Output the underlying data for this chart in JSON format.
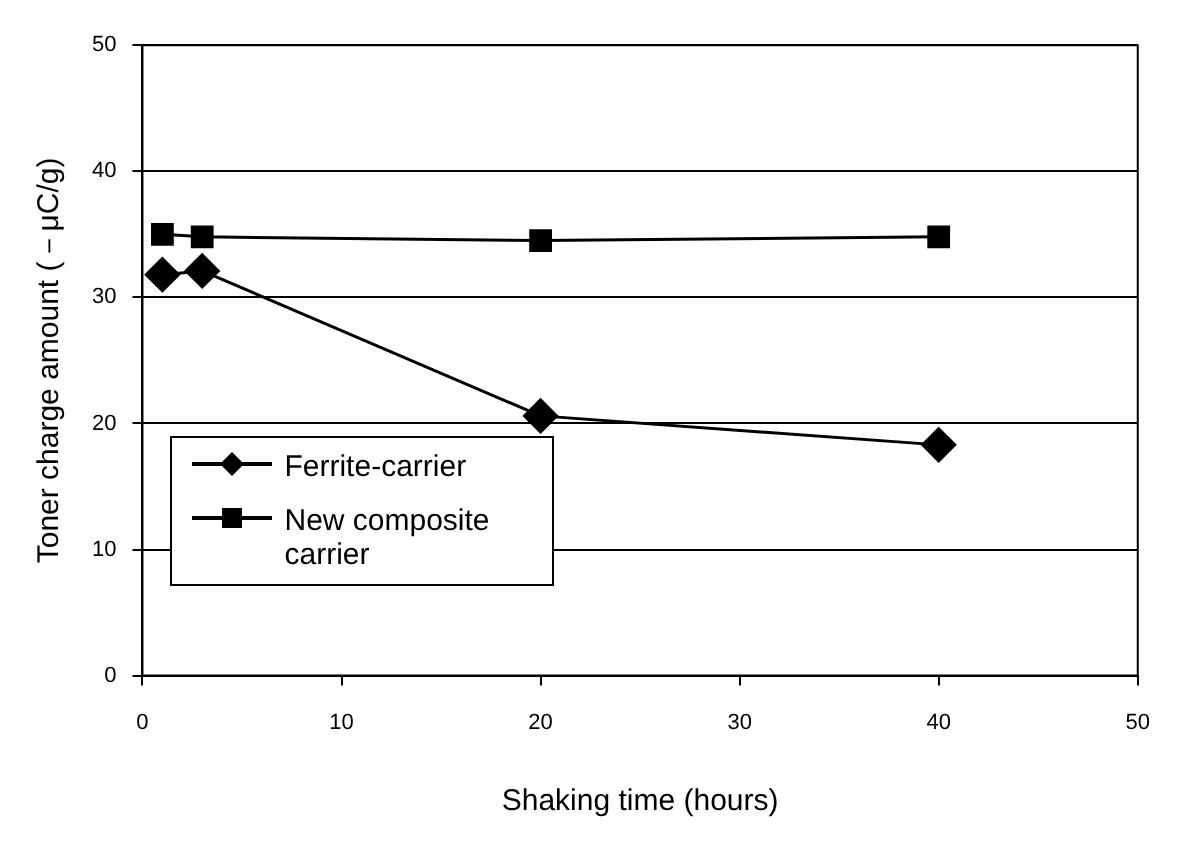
{
  "chart_data": {
    "type": "line",
    "xlabel": "Shaking time (hours)",
    "ylabel": "Toner charge amount (－μC/g)",
    "xlim": [
      0,
      50
    ],
    "xticks": [
      0,
      10,
      20,
      30,
      40,
      50
    ],
    "ylim": [
      0,
      50
    ],
    "yticks": [
      0,
      10,
      20,
      30,
      40,
      50
    ],
    "grid": "y",
    "legend": "bottom left",
    "series": [
      {
        "name": "Ferrite-carrier",
        "color": "#000000",
        "marker": "diamond",
        "x": [
          1,
          3,
          20,
          40
        ],
        "values": [
          31.8,
          32.1,
          20.6,
          18.3
        ]
      },
      {
        "name": "New composite carrier",
        "color": "#000000",
        "marker": "square",
        "x": [
          1,
          3,
          20,
          40
        ],
        "values": [
          35,
          34.8,
          34.5,
          34.8
        ]
      }
    ]
  }
}
